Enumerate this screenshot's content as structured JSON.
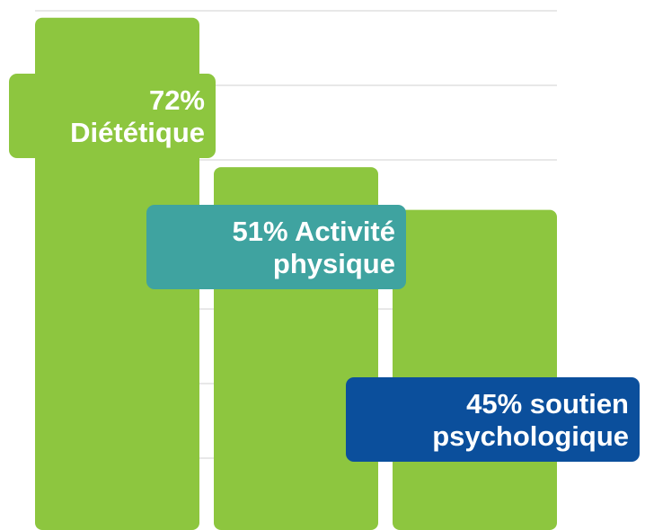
{
  "chart_data": {
    "type": "bar",
    "categories": [
      "Diététique",
      "Activité physique",
      "soutien psychologique"
    ],
    "values": [
      72,
      51,
      45
    ],
    "value_labels": [
      "72%",
      "51%",
      "45%"
    ],
    "color": "#8dc63f",
    "label_colors": [
      "#8dc63f",
      "#3fa3a0",
      "#0b4f9c"
    ],
    "ylim": [
      0,
      75
    ]
  }
}
